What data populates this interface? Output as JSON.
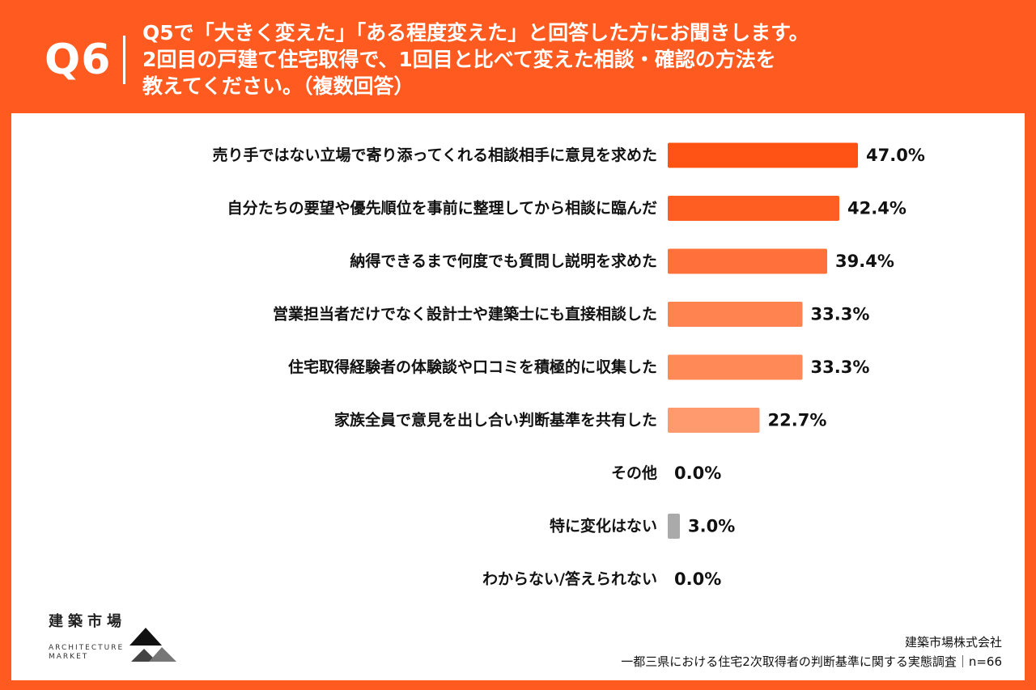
{
  "header": {
    "q_number": "Q6",
    "question_lines": [
      "Q5で「大きく変えた」「ある程度変えた」と回答した方にお聞きします。",
      "2回目の戸建て住宅取得で、1回目と比べて変えた相談・確認の方法を",
      "教えてください。（複数回答）"
    ]
  },
  "colors": {
    "background": "#ff5a1f",
    "panel": "#ffffff",
    "bar_shades": [
      "#ff5214",
      "#ff5e22",
      "#ff703a",
      "#ff8350",
      "#ff8a58",
      "#ff9a6e",
      "#ff9a6e"
    ],
    "bar_neutral": "#aaaaaa",
    "text": "#111111"
  },
  "chart_data": {
    "type": "bar",
    "orientation": "horizontal",
    "categories": [
      "売り手ではない立場で寄り添ってくれる相談相手に意見を求めた",
      "自分たちの要望や優先順位を事前に整理してから相談に臨んだ",
      "納得できるまで何度でも質問し説明を求めた",
      "営業担当者だけでなく設計士や建築士にも直接相談した",
      "住宅取得経験者の体験談や口コミを積極的に収集した",
      "家族全員で意見を出し合い判断基準を共有した",
      "その他",
      "特に変化はない",
      "わからない/答えられない"
    ],
    "values": [
      47.0,
      42.4,
      39.4,
      33.3,
      33.3,
      22.7,
      0.0,
      3.0,
      0.0
    ],
    "value_labels": [
      "47.0%",
      "42.4%",
      "39.4%",
      "33.3%",
      "33.3%",
      "22.7%",
      "0.0%",
      "3.0%",
      "0.0%"
    ],
    "unit": "%",
    "xlim": [
      0,
      100
    ]
  },
  "footer": {
    "logo_kanji": "建築市場",
    "logo_en_1": "ARCHITECTURE",
    "logo_en_2": "MARKET",
    "company": "建築市場株式会社",
    "survey": "一都三県における住宅2次取得者の判断基準に関する実態調査｜n=66"
  }
}
